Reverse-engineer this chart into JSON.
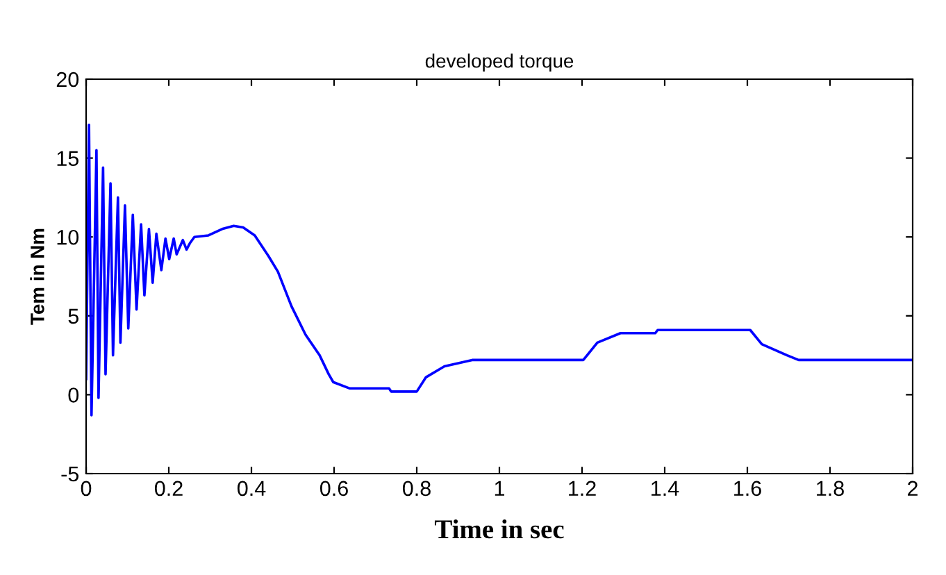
{
  "chart_data": {
    "type": "line",
    "title": "developed torque",
    "xlabel": "Time in sec",
    "ylabel": "Tem in Nm",
    "xlim": [
      0,
      2
    ],
    "ylim": [
      -5,
      20
    ],
    "xticks": [
      0,
      {
        "value": 0.2,
        "label": "0.2"
      },
      {
        "value": 0.4,
        "label": "0.4"
      },
      {
        "value": 0.6,
        "label": "0.6"
      },
      {
        "value": 0.8,
        "label": "0.8"
      },
      1,
      {
        "value": 1.2,
        "label": "1.2"
      },
      {
        "value": 1.4,
        "label": "1.4"
      },
      {
        "value": 1.6,
        "label": "1.6"
      },
      {
        "value": 1.8,
        "label": "1.8"
      },
      2
    ],
    "yticks": [
      -5,
      0,
      5,
      10,
      15,
      20
    ],
    "grid": false,
    "series": [
      {
        "color": "#0000ff",
        "x": [
          0,
          0.007,
          0.013,
          0.025,
          0.03,
          0.041,
          0.047,
          0.059,
          0.065,
          0.077,
          0.083,
          0.094,
          0.102,
          0.113,
          0.122,
          0.133,
          0.141,
          0.152,
          0.161,
          0.17,
          0.182,
          0.192,
          0.201,
          0.212,
          0.219,
          0.234,
          0.243,
          0.251,
          0.262,
          0.296,
          0.329,
          0.357,
          0.38,
          0.408,
          0.441,
          0.464,
          0.497,
          0.531,
          0.565,
          0.587,
          0.598,
          0.638,
          0.733,
          0.738,
          0.8,
          0.822,
          0.867,
          0.934,
          1.203,
          1.237,
          1.293,
          1.377,
          1.383,
          1.607,
          1.635,
          1.696,
          1.724,
          2
        ],
        "values": [
          1,
          17.1,
          -1.3,
          15.5,
          -0.2,
          14.4,
          1.3,
          13.4,
          2.5,
          12.5,
          3.3,
          12,
          4.2,
          11.4,
          5.4,
          10.8,
          6.3,
          10.5,
          7.1,
          10.2,
          7.9,
          9.9,
          8.6,
          9.9,
          8.9,
          9.8,
          9.2,
          9.6,
          10,
          10.1,
          10.5,
          10.7,
          10.6,
          10.1,
          8.8,
          7.8,
          5.6,
          3.8,
          2.5,
          1.3,
          0.8,
          0.4,
          0.4,
          0.2,
          0.2,
          1.1,
          1.8,
          2.2,
          2.2,
          3.3,
          3.9,
          3.9,
          4.1,
          4.1,
          3.2,
          2.5,
          2.2,
          2.2
        ]
      }
    ]
  }
}
